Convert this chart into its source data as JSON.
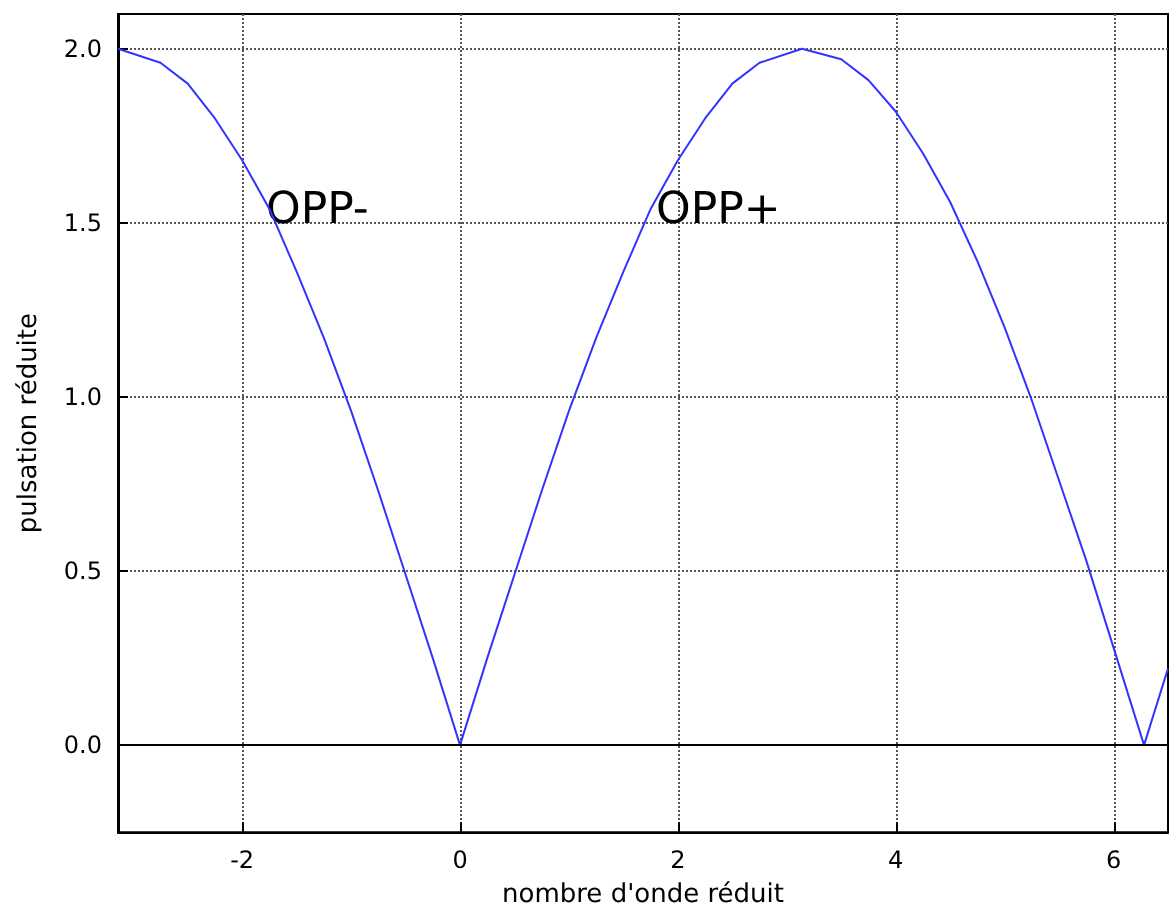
{
  "chart_data": {
    "type": "line",
    "xlabel": "nombre d'onde réduit",
    "ylabel": "pulsation réduite",
    "x": [
      -3.14,
      -2.75,
      -2.5,
      -2.25,
      -2,
      -1.75,
      -1.5,
      -1.25,
      -1,
      -0.75,
      -0.5,
      -0.25,
      0,
      0.25,
      0.5,
      0.75,
      1,
      1.25,
      1.5,
      1.75,
      2,
      2.25,
      2.5,
      2.75,
      3.14,
      3.5,
      3.75,
      4,
      4.25,
      4.5,
      4.75,
      5,
      5.25,
      5.5,
      5.75,
      6,
      6.28,
      6.5
    ],
    "series": [
      {
        "color": "#3333ff",
        "values": [
          2.0,
          1.96,
          1.9,
          1.8,
          1.68,
          1.54,
          1.36,
          1.17,
          0.96,
          0.73,
          0.49,
          0.25,
          0,
          0.25,
          0.49,
          0.73,
          0.96,
          1.17,
          1.36,
          1.54,
          1.68,
          1.8,
          1.9,
          1.96,
          2.0,
          1.97,
          1.91,
          1.82,
          1.7,
          1.56,
          1.39,
          1.2,
          0.99,
          0.76,
          0.53,
          0.28,
          0,
          0.22
        ]
      }
    ],
    "xlim": [
      -3.14,
      6.5
    ],
    "ylim": [
      -0.25,
      2.1
    ],
    "xticks": [
      -2,
      0,
      2,
      4,
      6
    ],
    "yticks": [
      {
        "value": 0,
        "label": "0.0"
      },
      {
        "value": 0.5,
        "label": "0.5"
      },
      {
        "value": 1,
        "label": "1.0"
      },
      {
        "value": 1.5,
        "label": "1.5"
      },
      {
        "value": 2,
        "label": "2.0"
      }
    ],
    "ref_lines": [
      {
        "axis": "y",
        "value": 0,
        "color": "#000000",
        "line_style": "solid"
      }
    ],
    "annotations": [
      "OPP-",
      "OPP+"
    ],
    "grid": true,
    "marker": "none",
    "line_style": "solid"
  }
}
